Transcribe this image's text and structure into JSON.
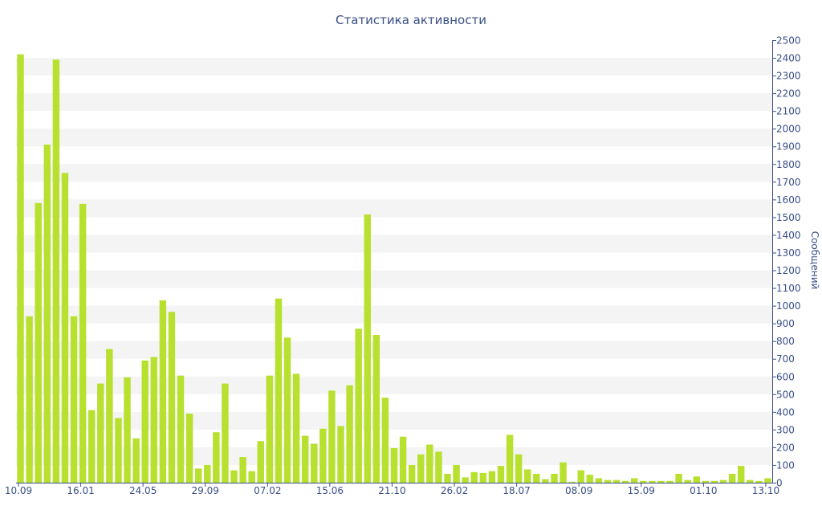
{
  "chart_data": {
    "type": "bar",
    "title": "Статистика активности",
    "xlabel": "",
    "ylabel": "Сообщений",
    "ylim": [
      0,
      2500
    ],
    "ytick_step": 100,
    "y_axis_position": "right",
    "grid": "alternating-bands",
    "legend": "none",
    "bar_color": "#b7e02f",
    "x_tick_labels": [
      {
        "label": "10.09",
        "index": 0
      },
      {
        "label": "16.01",
        "index": 7
      },
      {
        "label": "24.05",
        "index": 14
      },
      {
        "label": "29.09",
        "index": 21
      },
      {
        "label": "07.02",
        "index": 28
      },
      {
        "label": "15.06",
        "index": 35
      },
      {
        "label": "21.10",
        "index": 42
      },
      {
        "label": "26.02",
        "index": 49
      },
      {
        "label": "18.07",
        "index": 56
      },
      {
        "label": "08.09",
        "index": 63
      },
      {
        "label": "15.09",
        "index": 70
      },
      {
        "label": "01.10",
        "index": 77
      },
      {
        "label": "13.10",
        "index": 84
      }
    ],
    "values": [
      2420,
      940,
      1580,
      1910,
      2390,
      1750,
      940,
      1575,
      410,
      560,
      755,
      365,
      595,
      250,
      690,
      710,
      1030,
      965,
      605,
      390,
      80,
      100,
      285,
      560,
      70,
      145,
      65,
      235,
      605,
      1040,
      820,
      615,
      265,
      220,
      305,
      520,
      320,
      550,
      870,
      1515,
      835,
      480,
      195,
      260,
      100,
      160,
      215,
      175,
      50,
      100,
      30,
      60,
      55,
      65,
      95,
      270,
      160,
      75,
      50,
      20,
      50,
      115,
      5,
      70,
      45,
      25,
      15,
      15,
      10,
      25,
      10,
      10,
      10,
      10,
      50,
      15,
      35,
      10,
      10,
      15,
      50,
      95,
      15,
      10,
      25
    ]
  }
}
